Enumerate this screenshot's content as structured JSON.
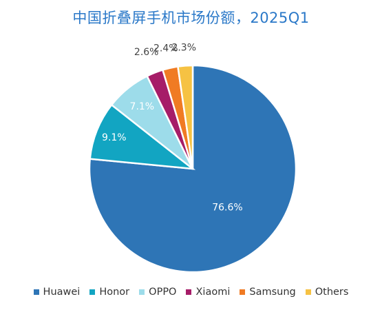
{
  "chart_data": {
    "type": "pie",
    "title": "中国折叠屏手机市场份额，2025Q1",
    "categories": [
      "Huawei",
      "Honor",
      "OPPO",
      "Xiaomi",
      "Samsung",
      "Others"
    ],
    "values": [
      76.6,
      9.1,
      7.1,
      2.6,
      2.4,
      2.3
    ],
    "value_labels": [
      "76.6%",
      "9.1%",
      "7.1%",
      "2.6%",
      "2.4%",
      "2.3%"
    ],
    "colors": [
      "#2e75b6",
      "#12a5c2",
      "#9ddcea",
      "#a61d68",
      "#f07b23",
      "#f6c243"
    ],
    "start_angle": "12 o'clock, clockwise",
    "legend_position": "bottom"
  }
}
